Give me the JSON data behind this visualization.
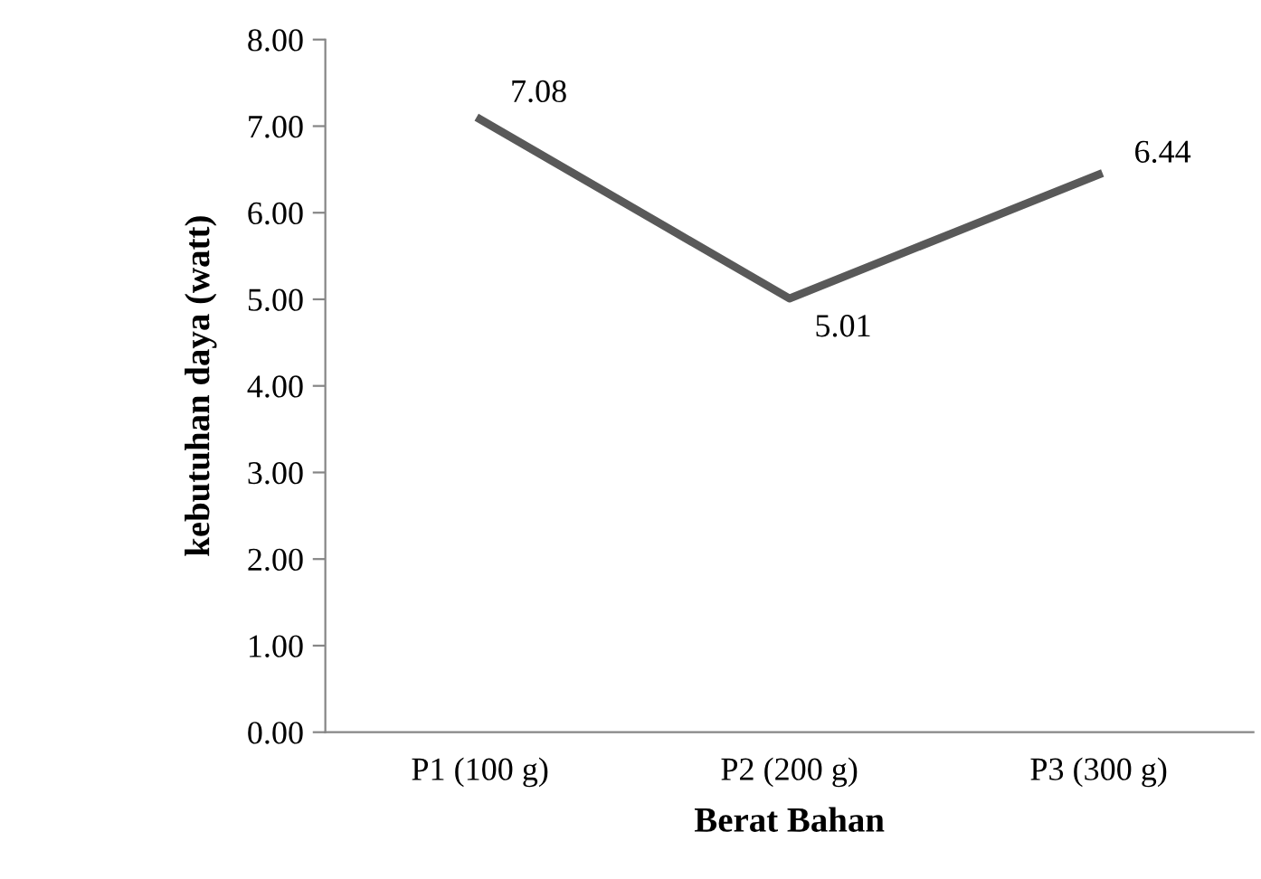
{
  "chart_data": {
    "type": "line",
    "xlabel": "Berat Bahan",
    "ylabel": "kebutuhan daya (watt)",
    "categories": [
      "P1 (100 g)",
      "P2 (200 g)",
      "P3 (300 g)"
    ],
    "series": [
      {
        "color": "#595959",
        "values": [
          7.08,
          5.01,
          6.44
        ]
      }
    ],
    "ylim": [
      0,
      8
    ],
    "yticks": [
      {
        "value": 0,
        "label": "0.00"
      },
      {
        "value": 1,
        "label": "1.00"
      },
      {
        "value": 2,
        "label": "2.00"
      },
      {
        "value": 3,
        "label": "3.00"
      },
      {
        "value": 4,
        "label": "4.00"
      },
      {
        "value": 5,
        "label": "5.00"
      },
      {
        "value": 6,
        "label": "6.00"
      },
      {
        "value": 7,
        "label": "7.00"
      },
      {
        "value": 8,
        "label": "8.00"
      }
    ],
    "data_labels": true,
    "grid": false,
    "marker": "none",
    "line_style": "solid"
  }
}
